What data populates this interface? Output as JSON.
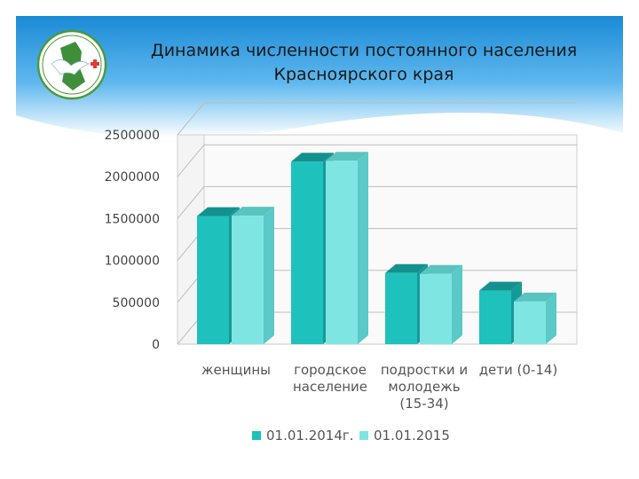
{
  "title_lines": [
    "Динамика численности постоянного населения",
    "Красноярского края"
  ],
  "logo": {
    "name": "organization-emblem",
    "colors": {
      "ring": "#4a9a3a",
      "land": "#3f8f3a",
      "bird": "#ffffff",
      "cross": "#e23a3a"
    }
  },
  "colors": {
    "series1": "#1fc1bd",
    "series2": "#7fe5e3",
    "header_top": "#1e8fd8",
    "header_bottom": "#ffffff"
  },
  "chart_data": {
    "type": "bar",
    "categories": [
      [
        "женщины"
      ],
      [
        "городское",
        "население"
      ],
      [
        "подростки и",
        "молодежь",
        "(15-34)"
      ],
      [
        "дети (0-14)"
      ]
    ],
    "series": [
      {
        "name": "01.01.2014г.",
        "values": [
          1530000,
          2180000,
          850000,
          640000
        ]
      },
      {
        "name": "01.01.2015",
        "values": [
          1535000,
          2190000,
          840000,
          510000
        ]
      }
    ],
    "ylim": [
      0,
      2500000
    ],
    "yticks": [
      "0",
      "500000",
      "1000000",
      "1500000",
      "2000000",
      "2500000"
    ],
    "grid": true,
    "legend": "bottom"
  }
}
